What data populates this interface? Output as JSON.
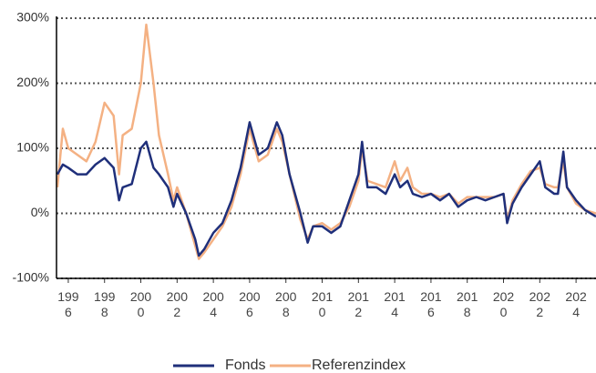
{
  "chart_data": {
    "type": "line",
    "x": [
      1995.4,
      1995.7,
      1996,
      1996.5,
      1997,
      1997.5,
      1998,
      1998.5,
      1998.8,
      1999,
      1999.5,
      2000,
      2000.3,
      2000.7,
      2001,
      2001.5,
      2001.8,
      2002,
      2002.5,
      2003,
      2003.2,
      2003.5,
      2004,
      2004.5,
      2005,
      2005.5,
      2006,
      2006.5,
      2007,
      2007.5,
      2007.8,
      2008.2,
      2008.8,
      2009.2,
      2009.5,
      2010,
      2010.5,
      2011,
      2011.5,
      2012,
      2012.2,
      2012.5,
      2013,
      2013.5,
      2014,
      2014.3,
      2014.7,
      2015,
      2015.5,
      2016,
      2016.5,
      2017,
      2017.5,
      2018,
      2018.5,
      2019,
      2019.5,
      2020,
      2020.2,
      2020.5,
      2021,
      2021.5,
      2022,
      2022.3,
      2022.8,
      2023,
      2023.3,
      2023.5,
      2024,
      2024.5,
      2025.1
    ],
    "series": [
      {
        "name": "Fonds",
        "color": "#1f2f7a",
        "values": [
          60,
          75,
          70,
          60,
          60,
          75,
          85,
          70,
          20,
          40,
          45,
          100,
          110,
          70,
          60,
          40,
          10,
          30,
          0,
          -40,
          -65,
          -55,
          -30,
          -15,
          20,
          70,
          140,
          90,
          100,
          140,
          120,
          60,
          0,
          -45,
          -20,
          -20,
          -30,
          -20,
          20,
          60,
          110,
          40,
          40,
          30,
          60,
          40,
          50,
          30,
          25,
          30,
          20,
          30,
          10,
          20,
          25,
          20,
          25,
          30,
          -15,
          15,
          40,
          60,
          80,
          40,
          30,
          30,
          95,
          40,
          20,
          5,
          -5
        ]
      },
      {
        "name": "Referenzindex",
        "color": "#f4b183",
        "values": [
          40,
          130,
          100,
          90,
          80,
          110,
          170,
          150,
          60,
          120,
          130,
          200,
          290,
          200,
          120,
          60,
          20,
          40,
          0,
          -50,
          -70,
          -60,
          -40,
          -20,
          10,
          60,
          130,
          80,
          90,
          130,
          110,
          60,
          -10,
          -40,
          -20,
          -15,
          -25,
          -15,
          10,
          50,
          100,
          50,
          45,
          40,
          80,
          50,
          70,
          40,
          30,
          30,
          25,
          30,
          15,
          25,
          25,
          25,
          25,
          30,
          -10,
          20,
          45,
          65,
          70,
          45,
          40,
          40,
          80,
          40,
          15,
          5,
          0
        ]
      }
    ],
    "xlim": [
      1995.35,
      2025.1
    ],
    "xticks": [
      1996,
      1998,
      2000,
      2002,
      2004,
      2006,
      2008,
      2010,
      2012,
      2014,
      2016,
      2018,
      2020,
      2022,
      2024
    ],
    "ylim": [
      -100,
      300
    ],
    "yticks": [
      {
        "value": -100,
        "label": "-100%"
      },
      {
        "value": 0,
        "label": "0%"
      },
      {
        "value": 100,
        "label": "100%"
      },
      {
        "value": 200,
        "label": "200%"
      },
      {
        "value": 300,
        "label": "300%"
      }
    ],
    "grid": true
  }
}
